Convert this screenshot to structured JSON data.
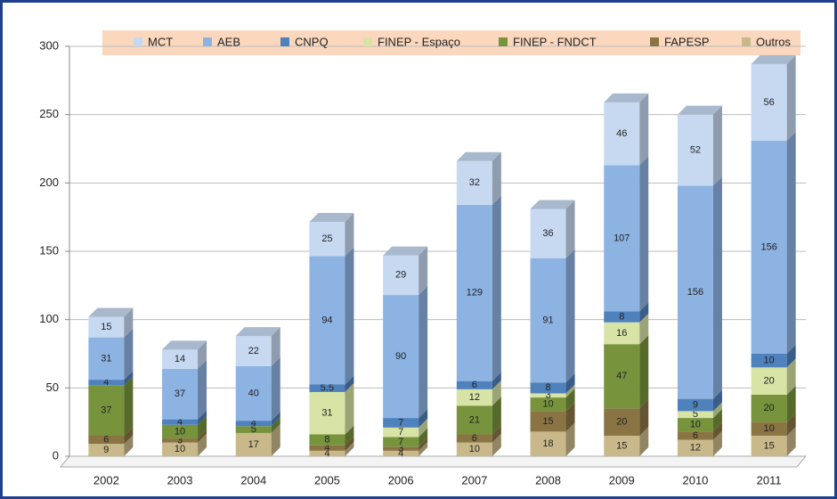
{
  "chart_data": {
    "type": "bar",
    "stacked": true,
    "categories": [
      "2002",
      "2003",
      "2004",
      "2005",
      "2006",
      "2007",
      "2008",
      "2009",
      "2010",
      "2011"
    ],
    "series": [
      {
        "name": "MCT",
        "color": "#c6d9f1",
        "values": [
          15,
          14,
          22,
          25,
          29,
          32,
          36,
          46,
          52,
          56
        ]
      },
      {
        "name": "AEB",
        "color": "#8db3e2",
        "values": [
          31,
          37,
          40,
          94,
          90,
          129,
          91,
          107,
          156,
          156
        ]
      },
      {
        "name": "CNPQ",
        "color": "#4f81bd",
        "values": [
          4,
          4,
          4,
          5.5,
          7,
          6,
          8,
          8,
          9,
          10
        ]
      },
      {
        "name": "FINEP - Espaço",
        "color": "#d7e4a5",
        "values": [
          0,
          0,
          0,
          31,
          7,
          12,
          3,
          16,
          5,
          20
        ]
      },
      {
        "name": "FINEP - FNDCT",
        "color": "#77933c",
        "values": [
          37,
          10,
          5,
          8,
          7,
          21,
          10,
          47,
          10,
          20
        ]
      },
      {
        "name": "FAPESP",
        "color": "#8b7444",
        "values": [
          6,
          3,
          0,
          4,
          3,
          6,
          15,
          20,
          6,
          10
        ]
      },
      {
        "name": "Outros",
        "color": "#c9b98a",
        "values": [
          9,
          10,
          17,
          4,
          4,
          10,
          18,
          15,
          12,
          15
        ]
      }
    ],
    "ylim": [
      0,
      300
    ],
    "yticks": [
      0,
      50,
      100,
      150,
      200,
      250,
      300
    ],
    "grid": true
  }
}
